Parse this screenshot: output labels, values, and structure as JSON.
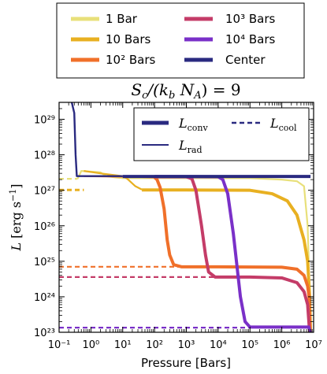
{
  "figure_legend": {
    "entries": [
      {
        "label": "1 Bar",
        "color": "#e8e07a"
      },
      {
        "label": "10 Bars",
        "color": "#e8b021"
      },
      {
        "label": "10² Bars",
        "color": "#f0702a"
      },
      {
        "label": "10³ Bars",
        "color": "#c43c68"
      },
      {
        "label": "10⁴ Bars",
        "color": "#7a30c8"
      },
      {
        "label": "Center",
        "color": "#2a2a80"
      }
    ]
  },
  "chart_data": {
    "type": "line",
    "title": "S_c/(k_b N_A) = 9",
    "xlabel": "Pressure [Bars]",
    "ylabel": "L [erg s⁻¹]",
    "xscale": "log",
    "yscale": "log",
    "xlim": [
      0.1,
      10000000
    ],
    "ylim": [
      1e+23,
      3e+29
    ],
    "x_ticks": [
      {
        "value": 0.1,
        "label": "10⁻¹"
      },
      {
        "value": 1,
        "label": "10⁰"
      },
      {
        "value": 10,
        "label": "10¹"
      },
      {
        "value": 100,
        "label": "10²"
      },
      {
        "value": 1000,
        "label": "10³"
      },
      {
        "value": 10000,
        "label": "10⁴"
      },
      {
        "value": 100000,
        "label": "10⁵"
      },
      {
        "value": 1000000,
        "label": "10⁶"
      },
      {
        "value": 10000000,
        "label": "10⁷"
      }
    ],
    "y_ticks": [
      {
        "value": 1e+23,
        "label": "10²³"
      },
      {
        "value": 1e+24,
        "label": "10²⁴"
      },
      {
        "value": 1e+25,
        "label": "10²⁵"
      },
      {
        "value": 1e+26,
        "label": "10²⁶"
      },
      {
        "value": 1e+27,
        "label": "10²⁷"
      },
      {
        "value": 1e+28,
        "label": "10²⁸"
      },
      {
        "value": 1e+29,
        "label": "10²⁹"
      }
    ],
    "inner_legend": [
      {
        "label": "L_conv",
        "style": "solid-thick"
      },
      {
        "label": "L_rad",
        "style": "solid-thin"
      },
      {
        "label": "L_cool",
        "style": "dashed"
      }
    ],
    "series": [
      {
        "name": "Center",
        "color": "#2a2a80",
        "kind": "rad",
        "width": 2.4,
        "points": [
          [
            0.25,
            3e+29
          ],
          [
            0.3,
            1.5e+29
          ],
          [
            0.33,
            1e+28
          ],
          [
            0.36,
            2.5e+27
          ],
          [
            0.5,
            2.5e+27
          ],
          [
            10,
            2.5e+27
          ]
        ]
      },
      {
        "name": "Center",
        "color": "#2a2a80",
        "kind": "conv",
        "width": 4,
        "points": [
          [
            10,
            2.45e+27
          ],
          [
            8000000,
            2.45e+27
          ]
        ]
      },
      {
        "name": "1 Bar",
        "color": "#e8e07a",
        "kind": "cool",
        "width": 2.2,
        "points": [
          [
            0.1,
            2.1e+27
          ],
          [
            0.38,
            2.1e+27
          ]
        ]
      },
      {
        "name": "1 Bar",
        "color": "#e8e07a",
        "kind": "rad",
        "width": 2.2,
        "points": [
          [
            0.38,
            2.1e+27
          ],
          [
            0.5,
            3.5e+27
          ],
          [
            2,
            3.2e+27
          ],
          [
            3,
            2.5e+27
          ],
          [
            6,
            2.3e+27
          ],
          [
            10,
            2.2e+27
          ],
          [
            100,
            2.2e+27
          ],
          [
            100000,
            2.2e+27
          ],
          [
            1000000,
            2e+27
          ],
          [
            3000000,
            1.8e+27
          ],
          [
            5000000,
            1.3e+27
          ],
          [
            6500000,
            1e+26
          ],
          [
            7000000,
            1e+25
          ],
          [
            7500000,
            1e+24
          ],
          [
            8000000,
            1e+23
          ]
        ]
      },
      {
        "name": "10 Bars",
        "color": "#e8b021",
        "kind": "cool",
        "width": 3,
        "points": [
          [
            0.1,
            1.02e+27
          ],
          [
            0.6,
            1.02e+27
          ]
        ]
      },
      {
        "name": "10 Bars",
        "color": "#e8b021",
        "kind": "rad",
        "width": 2.2,
        "points": [
          [
            0.6,
            3.5e+27
          ],
          [
            2,
            3e+27
          ],
          [
            10,
            2.5e+27
          ],
          [
            14,
            2.1e+27
          ],
          [
            25,
            1.3e+27
          ],
          [
            40,
            1.05e+27
          ]
        ]
      },
      {
        "name": "10 Bars",
        "color": "#e8b021",
        "kind": "conv",
        "width": 4,
        "points": [
          [
            40,
            1.02e+27
          ],
          [
            1000,
            1.02e+27
          ],
          [
            100000,
            1e+27
          ],
          [
            500000,
            8e+26
          ],
          [
            1500000,
            5e+26
          ],
          [
            3000000,
            2e+26
          ],
          [
            5000000,
            4e+25
          ],
          [
            6500000,
            1e+25
          ],
          [
            7500000,
            1e+24
          ],
          [
            8000000,
            1e+23
          ]
        ]
      },
      {
        "name": "10² Bars",
        "color": "#f0702a",
        "kind": "cool",
        "width": 2.2,
        "points": [
          [
            0.1,
            7e+24
          ],
          [
            700,
            7e+24
          ]
        ]
      },
      {
        "name": "10² Bars",
        "color": "#f0702a",
        "kind": "rad",
        "width": 2.2,
        "points": [
          [
            0.6,
            2.5e+27
          ],
          [
            20,
            2.4e+27
          ],
          [
            100,
            2.3e+27
          ]
        ]
      },
      {
        "name": "10² Bars",
        "color": "#f0702a",
        "kind": "conv",
        "width": 4,
        "points": [
          [
            100,
            2.3e+27
          ],
          [
            120,
            2e+27
          ],
          [
            150,
            1.2e+27
          ],
          [
            200,
            3e+26
          ],
          [
            250,
            4e+25
          ],
          [
            300,
            1.5e+25
          ],
          [
            400,
            8e+24
          ],
          [
            700,
            7e+24
          ],
          [
            10000,
            7e+24
          ],
          [
            1000000,
            6.8e+24
          ],
          [
            3000000,
            6e+24
          ],
          [
            5000000,
            4e+24
          ],
          [
            6500000,
            2e+24
          ],
          [
            7200000,
            1e+24
          ],
          [
            7800000,
            1e+23
          ]
        ]
      },
      {
        "name": "10³ Bars",
        "color": "#c43c68",
        "kind": "cool",
        "width": 2.2,
        "points": [
          [
            0.1,
            3.6e+24
          ],
          [
            8000,
            3.6e+24
          ]
        ]
      },
      {
        "name": "10³ Bars",
        "color": "#c43c68",
        "kind": "conv",
        "width": 4,
        "points": [
          [
            100,
            2.4e+27
          ],
          [
            1000,
            2.4e+27
          ],
          [
            1500,
            2.1e+27
          ],
          [
            2000,
            1e+27
          ],
          [
            3000,
            1e+26
          ],
          [
            4000,
            1.5e+25
          ],
          [
            5000,
            5e+24
          ],
          [
            8000,
            3.6e+24
          ],
          [
            100000,
            3.6e+24
          ],
          [
            1000000,
            3.4e+24
          ],
          [
            3000000,
            2.5e+24
          ],
          [
            5000000,
            1.4e+24
          ],
          [
            6500000,
            6e+23
          ],
          [
            7500000,
            1e+23
          ]
        ]
      },
      {
        "name": "10⁴ Bars",
        "color": "#7a30c8",
        "kind": "cool",
        "width": 2.2,
        "points": [
          [
            0.1,
            1.35e+23
          ],
          [
            100000,
            1.35e+23
          ]
        ]
      },
      {
        "name": "10⁴ Bars",
        "color": "#7a30c8",
        "kind": "conv",
        "width": 4,
        "points": [
          [
            100,
            2.45e+27
          ],
          [
            10000,
            2.4e+27
          ],
          [
            14000,
            2e+27
          ],
          [
            20000,
            8e+26
          ],
          [
            30000,
            6e+25
          ],
          [
            40000,
            6e+24
          ],
          [
            50000,
            1e+24
          ],
          [
            70000,
            2e+23
          ],
          [
            100000,
            1.4e+23
          ],
          [
            1000000,
            1.4e+23
          ],
          [
            7000000,
            1.4e+23
          ],
          [
            8000000,
            1e+23
          ]
        ]
      }
    ]
  }
}
